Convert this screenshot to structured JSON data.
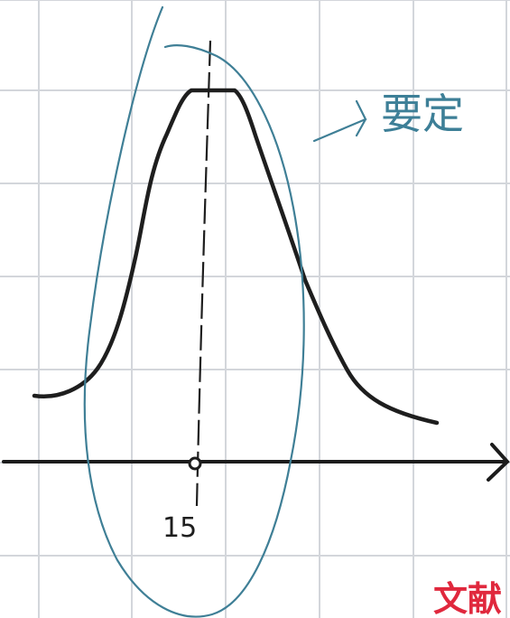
{
  "diagram": {
    "center_tick_label": "15",
    "note_text": "要定",
    "stamp_text": "文献",
    "colors": {
      "grid": "#d3d6db",
      "ink": "#1e1e1e",
      "annotation": "#3f7f96",
      "stamp": "#e0283d"
    }
  }
}
